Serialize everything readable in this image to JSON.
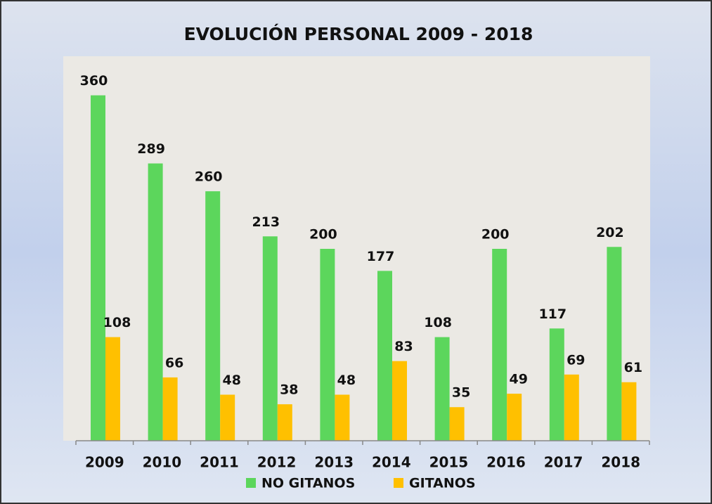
{
  "chart_data": {
    "type": "bar",
    "title": "EVOLUCIÓN PERSONAL 2009 - 2018",
    "categories": [
      "2009",
      "2010",
      "2011",
      "2012",
      "2013",
      "2014",
      "2015",
      "2016",
      "2017",
      "2018"
    ],
    "series": [
      {
        "name": "NO GITANOS",
        "color": "#5cd65c",
        "values": [
          360,
          289,
          260,
          213,
          200,
          177,
          108,
          200,
          117,
          202
        ]
      },
      {
        "name": "GITANOS",
        "color": "#ffc000",
        "values": [
          108,
          66,
          48,
          38,
          48,
          83,
          35,
          49,
          69,
          61
        ]
      }
    ],
    "ylim": [
      0,
      400
    ],
    "legend": "bottom"
  }
}
